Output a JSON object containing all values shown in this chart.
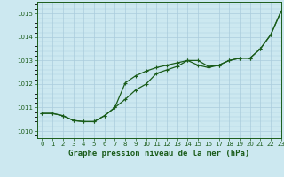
{
  "title": "Graphe pression niveau de la mer (hPa)",
  "xlim": [
    -0.5,
    23
  ],
  "ylim": [
    1009.7,
    1015.5
  ],
  "yticks": [
    1010,
    1011,
    1012,
    1013,
    1014,
    1015
  ],
  "xticks": [
    0,
    1,
    2,
    3,
    4,
    5,
    6,
    7,
    8,
    9,
    10,
    11,
    12,
    13,
    14,
    15,
    16,
    17,
    18,
    19,
    20,
    21,
    22,
    23
  ],
  "background_color": "#cce8f0",
  "grid_color": "#aaccdd",
  "line_color": "#1a5c1a",
  "line1_x": [
    0,
    1,
    2,
    3,
    4,
    5,
    6,
    7,
    8,
    9,
    10,
    11,
    12,
    13,
    14,
    15,
    16,
    17,
    18,
    19,
    20,
    21,
    22,
    23
  ],
  "line1_y": [
    1010.75,
    1010.75,
    1010.65,
    1010.45,
    1010.4,
    1010.4,
    1010.65,
    1011.0,
    1011.35,
    1011.75,
    1012.0,
    1012.45,
    1012.6,
    1012.75,
    1013.0,
    1012.8,
    1012.7,
    1012.8,
    1013.0,
    1013.1,
    1013.1,
    1013.5,
    1014.1,
    1015.1
  ],
  "line2_x": [
    0,
    1,
    2,
    3,
    4,
    5,
    6,
    7,
    8,
    9,
    10,
    11,
    12,
    13,
    14,
    15,
    16,
    17,
    18,
    19,
    20,
    21,
    22,
    23
  ],
  "line2_y": [
    1010.75,
    1010.75,
    1010.65,
    1010.45,
    1010.4,
    1010.4,
    1010.65,
    1011.0,
    1012.05,
    1012.35,
    1012.55,
    1012.7,
    1012.8,
    1012.9,
    1013.0,
    1013.0,
    1012.75,
    1012.8,
    1013.0,
    1013.1,
    1013.1,
    1013.5,
    1014.1,
    1015.1
  ]
}
